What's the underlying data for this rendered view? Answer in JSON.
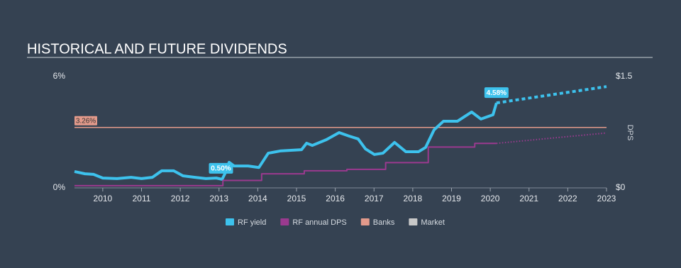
{
  "chart_data": {
    "type": "line",
    "title": "HISTORICAL AND FUTURE DIVIDENDS",
    "xlim": [
      2009.27,
      2023
    ],
    "xticks": [
      2010,
      2011,
      2012,
      2013,
      2014,
      2015,
      2016,
      2017,
      2018,
      2019,
      2020,
      2021,
      2022,
      2023
    ],
    "ylim": [
      0,
      6
    ],
    "yticks": [
      {
        "value": 0,
        "label": "0%"
      },
      {
        "value": 6,
        "label": "6%"
      }
    ],
    "y2lim": [
      0,
      1.5
    ],
    "y2ticks": [
      {
        "value": 0,
        "label": "$0"
      },
      {
        "value": 1.5,
        "label": "$1.5"
      }
    ],
    "y2_label": "DPS",
    "series": [
      {
        "name": "RF yield",
        "color": "#3dc2ed",
        "x": [
          2009.27,
          2009.54,
          2009.76,
          2010.0,
          2010.37,
          2010.73,
          2011.0,
          2011.28,
          2011.52,
          2011.83,
          2012.07,
          2012.38,
          2012.66,
          2012.93,
          2013.08,
          2013.17,
          2013.26,
          2013.39,
          2013.75,
          2014.03,
          2014.27,
          2014.58,
          2015.13,
          2015.26,
          2015.41,
          2015.77,
          2016.1,
          2016.36,
          2016.59,
          2016.78,
          2017.01,
          2017.23,
          2017.53,
          2017.82,
          2018.15,
          2018.33,
          2018.55,
          2018.79,
          2019.15,
          2019.52,
          2019.76,
          2020.07,
          2020.16
        ],
        "values": [
          0.88,
          0.76,
          0.73,
          0.53,
          0.5,
          0.57,
          0.5,
          0.57,
          0.92,
          0.92,
          0.65,
          0.57,
          0.5,
          0.53,
          0.46,
          0.84,
          1.38,
          1.18,
          1.18,
          1.1,
          1.87,
          1.99,
          2.06,
          2.41,
          2.29,
          2.6,
          2.98,
          2.79,
          2.64,
          2.1,
          1.8,
          1.87,
          2.45,
          1.95,
          1.95,
          2.18,
          3.13,
          3.59,
          3.59,
          4.09,
          3.71,
          3.94,
          4.58
        ],
        "forecast": {
          "x": [
            2020.16,
            2023
          ],
          "values": [
            4.58,
            5.46
          ]
        }
      },
      {
        "name": "RF annual DPS",
        "color": "#9b3a8f",
        "axis": "y2",
        "x": [
          2009.27,
          2013.1,
          2013.1,
          2014.1,
          2014.1,
          2015.2,
          2015.2,
          2016.3,
          2016.3,
          2017.3,
          2017.3,
          2018.4,
          2018.4,
          2019.6,
          2019.6,
          2020.16
        ],
        "values": [
          0.03,
          0.03,
          0.1,
          0.1,
          0.19,
          0.19,
          0.23,
          0.23,
          0.25,
          0.25,
          0.34,
          0.34,
          0.55,
          0.55,
          0.6,
          0.6
        ],
        "forecast": {
          "x": [
            2020.16,
            2023
          ],
          "values": [
            0.6,
            0.74
          ]
        }
      }
    ],
    "references": [
      {
        "name": "Banks",
        "color": "#e39a8b",
        "value": 3.26,
        "value_label": "3.26%"
      },
      {
        "name": "Market",
        "color": "#c8c8c8"
      }
    ],
    "annotations": [
      {
        "x": 2020.16,
        "value": 4.58,
        "label": "4.58%"
      },
      {
        "x": 2013.05,
        "value": 0.5,
        "label": "0.50%"
      }
    ]
  }
}
